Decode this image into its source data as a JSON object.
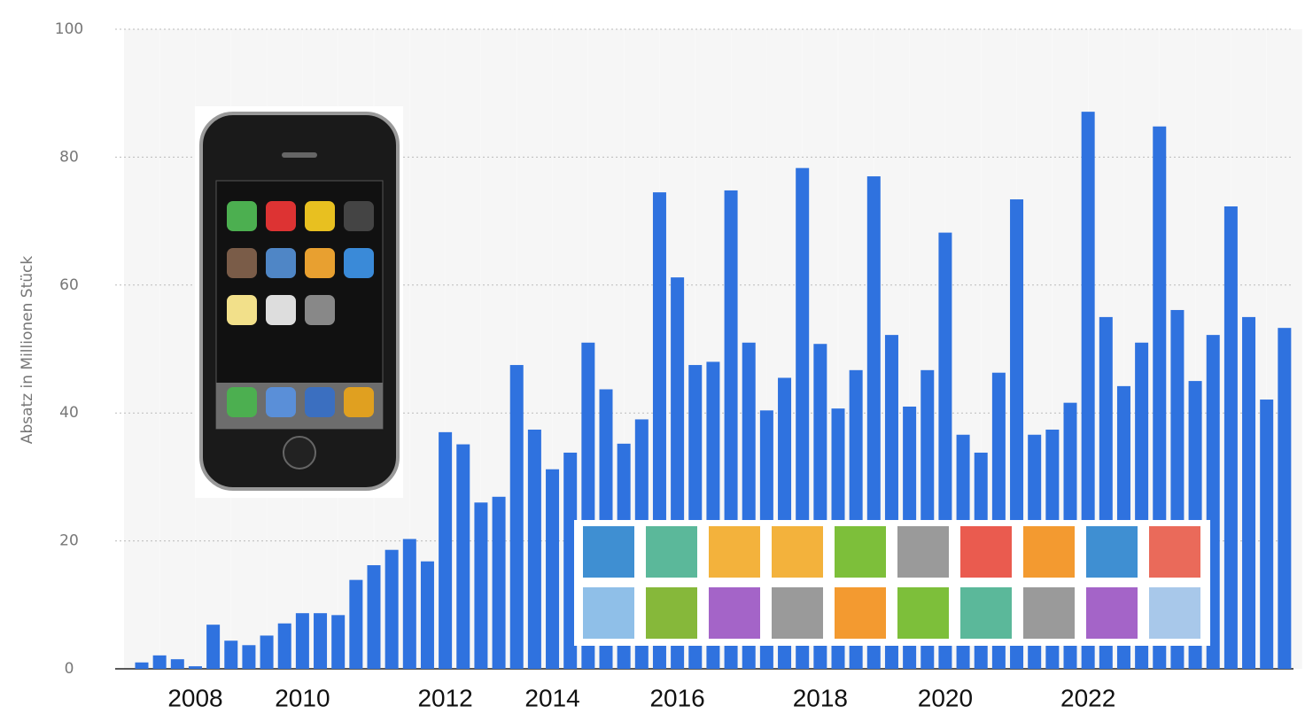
{
  "chart_data": {
    "type": "bar",
    "y_label": "Absatz in Millionen Stück",
    "categories": [
      null,
      null,
      null,
      "2008",
      null,
      null,
      null,
      null,
      null,
      "2010",
      null,
      null,
      null,
      null,
      null,
      null,
      null,
      "2012",
      null,
      null,
      null,
      null,
      null,
      "2014",
      null,
      null,
      null,
      null,
      null,
      null,
      "2016",
      null,
      null,
      null,
      null,
      null,
      null,
      null,
      "2018",
      null,
      null,
      null,
      null,
      null,
      null,
      "2020",
      null,
      null,
      null,
      null,
      null,
      null,
      null,
      "2022",
      null,
      null,
      null,
      null,
      null,
      null,
      null,
      null,
      null,
      null,
      null
    ],
    "values": [
      1.0,
      2.1,
      1.5,
      0.4,
      6.9,
      4.4,
      3.7,
      5.2,
      7.1,
      8.7,
      8.7,
      8.4,
      13.9,
      16.2,
      18.6,
      20.3,
      16.8,
      37.0,
      35.1,
      26.0,
      26.9,
      47.5,
      37.4,
      31.2,
      33.8,
      51.0,
      43.7,
      35.2,
      39.0,
      74.5,
      61.2,
      47.5,
      48.0,
      74.8,
      51.0,
      40.4,
      45.5,
      78.3,
      50.8,
      40.7,
      46.7,
      77.0,
      52.2,
      41.0,
      46.7,
      68.2,
      36.6,
      33.8,
      46.3,
      73.4,
      36.6,
      37.4,
      41.6,
      87.1,
      55.0,
      44.2,
      51.0,
      84.8,
      56.1,
      45.0,
      52.2,
      72.3,
      55.0,
      42.1,
      53.3
    ],
    "color": "#2f72df",
    "ylim": [
      0,
      100
    ],
    "yticks": [
      0,
      20,
      40,
      60,
      80,
      100
    ],
    "grid": true
  }
}
